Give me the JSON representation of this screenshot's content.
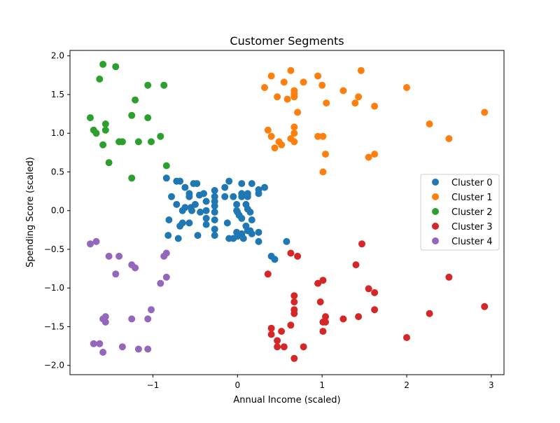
{
  "chart_data": {
    "type": "scatter",
    "title": "Customer Segments",
    "xlabel": "Annual Income (scaled)",
    "ylabel": "Spending Score (scaled)",
    "xlim": [
      -1.98,
      3.15
    ],
    "ylim": [
      -2.12,
      2.07
    ],
    "xticks": [
      -1,
      0,
      1,
      2,
      3
    ],
    "yticks": [
      -2.0,
      -1.5,
      -1.0,
      -0.5,
      0.0,
      0.5,
      1.0,
      1.5,
      2.0
    ],
    "xtick_labels": [
      "−1",
      "0",
      "1",
      "2",
      "3"
    ],
    "ytick_labels": [
      "−2.0",
      "−1.5",
      "−1.0",
      "−0.5",
      "0.0",
      "0.5",
      "1.0",
      "1.5",
      "2.0"
    ],
    "grid": false,
    "legend_position": "center-right",
    "series": [
      {
        "name": "Cluster 0",
        "color": "#1f77b4",
        "points": [
          [
            -0.84,
            0.42
          ],
          [
            -0.72,
            0.38
          ],
          [
            -0.68,
            0.38
          ],
          [
            -0.52,
            0.35
          ],
          [
            -0.48,
            0.35
          ],
          [
            -0.62,
            0.3
          ],
          [
            -0.78,
            0.18
          ],
          [
            -0.57,
            0.22
          ],
          [
            -0.57,
            0.18
          ],
          [
            -0.45,
            0.2
          ],
          [
            -0.4,
            0.22
          ],
          [
            -0.72,
            0.08
          ],
          [
            -0.62,
            0.04
          ],
          [
            -0.55,
            0.04
          ],
          [
            -0.5,
            0.08
          ],
          [
            -0.65,
            0.0
          ],
          [
            -0.54,
            0.0
          ],
          [
            -0.44,
            -0.02
          ],
          [
            -0.37,
            0.12
          ],
          [
            -0.81,
            -0.12
          ],
          [
            -0.68,
            -0.2
          ],
          [
            -0.65,
            -0.16
          ],
          [
            -0.57,
            -0.16
          ],
          [
            -0.47,
            -0.32
          ],
          [
            -0.82,
            -0.32
          ],
          [
            -0.7,
            -0.36
          ],
          [
            -0.27,
            0.26
          ],
          [
            -0.27,
            0.18
          ],
          [
            -0.27,
            0.12
          ],
          [
            -0.27,
            0.06
          ],
          [
            -0.27,
            -0.02
          ],
          [
            -0.27,
            -0.12
          ],
          [
            -0.27,
            -0.24
          ],
          [
            -0.27,
            -0.32
          ],
          [
            -0.37,
            0.0
          ],
          [
            -0.37,
            -0.1
          ],
          [
            -0.37,
            -0.18
          ],
          [
            -0.15,
            0.18
          ],
          [
            -0.15,
            0.3
          ],
          [
            -0.1,
            0.38
          ],
          [
            -0.05,
            0.18
          ],
          [
            -0.01,
            0.08
          ],
          [
            -0.01,
            0.0
          ],
          [
            0.02,
            -0.06
          ],
          [
            0.05,
            -0.1
          ],
          [
            0.05,
            0.18
          ],
          [
            0.05,
            0.22
          ],
          [
            0.05,
            0.35
          ],
          [
            0.17,
            0.35
          ],
          [
            0.25,
            0.22
          ],
          [
            0.25,
            0.27
          ],
          [
            0.32,
            0.3
          ],
          [
            0.12,
            0.22
          ],
          [
            0.12,
            0.18
          ],
          [
            0.1,
            0.08
          ],
          [
            0.12,
            0.02
          ],
          [
            0.15,
            -0.02
          ],
          [
            0.17,
            -0.12
          ],
          [
            0.1,
            -0.2
          ],
          [
            0.05,
            -0.3
          ],
          [
            0.0,
            -0.33
          ],
          [
            -0.05,
            -0.36
          ],
          [
            -0.1,
            -0.36
          ],
          [
            -0.12,
            -0.16
          ],
          [
            0.0,
            -0.02
          ],
          [
            0.07,
            -0.36
          ],
          [
            0.12,
            -0.26
          ],
          [
            0.17,
            -0.3
          ],
          [
            0.25,
            -0.28
          ],
          [
            0.25,
            -0.4
          ],
          [
            0.15,
            -0.26
          ],
          [
            -0.01,
            -0.28
          ],
          [
            0.58,
            -0.4
          ],
          [
            0.4,
            -0.59
          ],
          [
            0.44,
            -0.63
          ]
        ]
      },
      {
        "name": "Cluster 1",
        "color": "#ff7f0e",
        "points": [
          [
            0.4,
            1.74
          ],
          [
            0.63,
            1.81
          ],
          [
            0.95,
            1.74
          ],
          [
            1.46,
            1.81
          ],
          [
            0.55,
            1.66
          ],
          [
            0.78,
            1.66
          ],
          [
            0.32,
            1.59
          ],
          [
            0.67,
            1.55
          ],
          [
            0.67,
            1.51
          ],
          [
            0.67,
            1.47
          ],
          [
            0.47,
            1.47
          ],
          [
            0.59,
            1.44
          ],
          [
            1.0,
            1.62
          ],
          [
            1.25,
            1.55
          ],
          [
            1.43,
            1.47
          ],
          [
            1.39,
            1.39
          ],
          [
            1.05,
            1.39
          ],
          [
            1.62,
            1.35
          ],
          [
            2.0,
            1.59
          ],
          [
            0.71,
            1.27
          ],
          [
            2.92,
            1.27
          ],
          [
            2.27,
            1.12
          ],
          [
            0.67,
            1.08
          ],
          [
            0.36,
            1.04
          ],
          [
            0.4,
            0.96
          ],
          [
            0.67,
            1.0
          ],
          [
            0.95,
            0.96
          ],
          [
            1.01,
            0.96
          ],
          [
            0.63,
            0.93
          ],
          [
            0.67,
            0.89
          ],
          [
            0.49,
            0.89
          ],
          [
            0.52,
            0.85
          ],
          [
            0.44,
            0.81
          ],
          [
            2.5,
            0.93
          ],
          [
            1.04,
            0.73
          ],
          [
            1.55,
            0.69
          ],
          [
            1.62,
            0.73
          ],
          [
            1.01,
            0.5
          ]
        ]
      },
      {
        "name": "Cluster 2",
        "color": "#2ca02c",
        "points": [
          [
            -1.59,
            1.89
          ],
          [
            -1.44,
            1.86
          ],
          [
            -1.63,
            1.7
          ],
          [
            -1.06,
            1.62
          ],
          [
            -0.87,
            1.62
          ],
          [
            -1.21,
            1.43
          ],
          [
            -1.74,
            1.2
          ],
          [
            -1.25,
            1.23
          ],
          [
            -1.06,
            1.2
          ],
          [
            -1.56,
            1.12
          ],
          [
            -1.56,
            1.04
          ],
          [
            -1.7,
            1.04
          ],
          [
            -1.67,
            1.0
          ],
          [
            -1.4,
            0.89
          ],
          [
            -1.36,
            0.89
          ],
          [
            -1.17,
            0.89
          ],
          [
            -1.02,
            0.89
          ],
          [
            -0.91,
            0.96
          ],
          [
            -1.59,
            0.85
          ],
          [
            -1.52,
            0.62
          ],
          [
            -0.84,
            0.58
          ],
          [
            -1.25,
            0.42
          ]
        ]
      },
      {
        "name": "Cluster 3",
        "color": "#d62728",
        "points": [
          [
            1.47,
            -0.43
          ],
          [
            0.63,
            -0.55
          ],
          [
            0.71,
            -0.59
          ],
          [
            1.4,
            -0.7
          ],
          [
            0.36,
            -0.82
          ],
          [
            0.95,
            -0.94
          ],
          [
            1.01,
            -0.9
          ],
          [
            1.55,
            -1.01
          ],
          [
            1.62,
            -1.06
          ],
          [
            2.5,
            -0.86
          ],
          [
            0.67,
            -1.1
          ],
          [
            0.67,
            -1.18
          ],
          [
            0.98,
            -1.18
          ],
          [
            0.67,
            -1.28
          ],
          [
            0.67,
            -1.33
          ],
          [
            1.04,
            -1.37
          ],
          [
            1.62,
            -1.28
          ],
          [
            2.27,
            -1.33
          ],
          [
            2.92,
            -1.24
          ],
          [
            1.01,
            -1.44
          ],
          [
            1.04,
            -1.44
          ],
          [
            1.25,
            -1.4
          ],
          [
            1.43,
            -1.37
          ],
          [
            0.63,
            -1.48
          ],
          [
            0.4,
            -1.52
          ],
          [
            0.52,
            -1.56
          ],
          [
            1.01,
            -1.56
          ],
          [
            0.4,
            -1.6
          ],
          [
            2.0,
            -1.64
          ],
          [
            0.47,
            -1.68
          ],
          [
            0.47,
            -1.76
          ],
          [
            0.55,
            -1.76
          ],
          [
            0.78,
            -1.76
          ],
          [
            0.67,
            -1.91
          ]
        ]
      },
      {
        "name": "Cluster 4",
        "color": "#9467bd",
        "points": [
          [
            -1.74,
            -0.43
          ],
          [
            -1.67,
            -0.4
          ],
          [
            -1.52,
            -0.59
          ],
          [
            -1.4,
            -0.59
          ],
          [
            -1.25,
            -0.7
          ],
          [
            -1.21,
            -0.74
          ],
          [
            -0.84,
            -0.55
          ],
          [
            -0.87,
            -0.59
          ],
          [
            -1.44,
            -0.82
          ],
          [
            -0.84,
            -0.86
          ],
          [
            -0.91,
            -0.94
          ],
          [
            -1.02,
            -1.28
          ],
          [
            -1.56,
            -1.37
          ],
          [
            -1.59,
            -1.4
          ],
          [
            -1.56,
            -1.44
          ],
          [
            -1.25,
            -1.4
          ],
          [
            -1.06,
            -1.4
          ],
          [
            -1.7,
            -1.72
          ],
          [
            -1.63,
            -1.72
          ],
          [
            -1.36,
            -1.76
          ],
          [
            -1.17,
            -1.79
          ],
          [
            -1.06,
            -1.79
          ],
          [
            -1.59,
            -1.83
          ]
        ]
      }
    ]
  }
}
